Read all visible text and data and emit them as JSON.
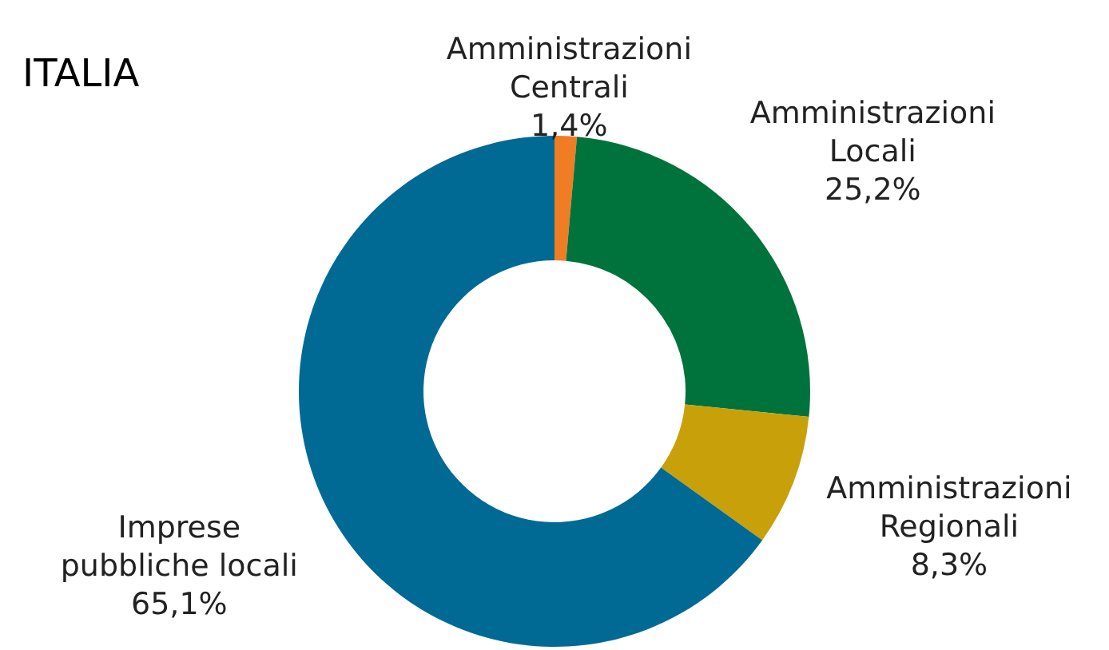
{
  "chart_data": {
    "type": "donut",
    "title": "ITALIA",
    "categories": [
      "Amministrazioni Centrali",
      "Amministrazioni Locali",
      "Amministrazioni Regionali",
      "Imprese pubbliche locali"
    ],
    "values": [
      1.4,
      25.2,
      8.3,
      65.1
    ],
    "value_labels": [
      "1,4%",
      "25,2%",
      "8,3%",
      "65,1%"
    ],
    "colors": [
      "#f07d24",
      "#00733c",
      "#c8a00a",
      "#006a94"
    ]
  }
}
